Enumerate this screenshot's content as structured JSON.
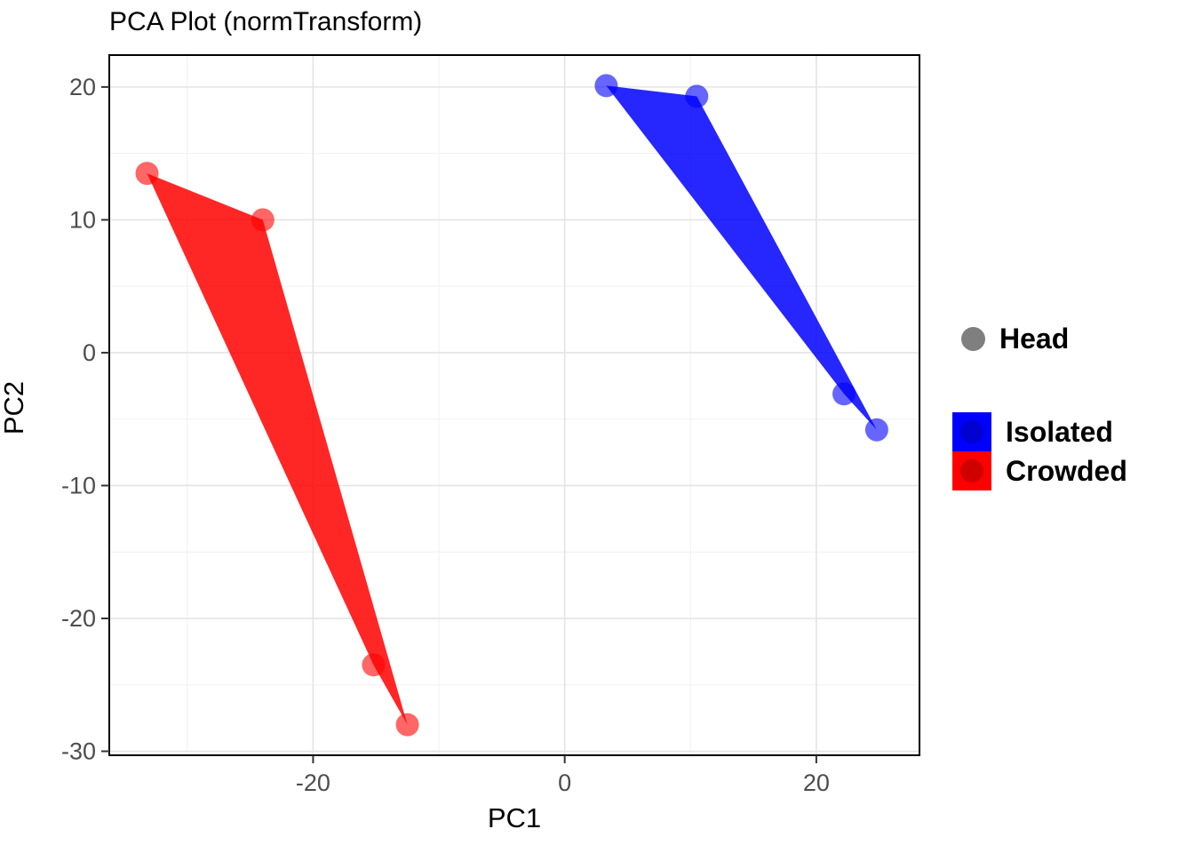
{
  "title": "PCA Plot (normTransform)",
  "axis_titles": {
    "x": "PC1",
    "y": "PC2"
  },
  "legend": {
    "shape_items": [
      {
        "label": "Head",
        "color": "#7f7f7f"
      }
    ],
    "fill_items": [
      {
        "label": "Isolated",
        "color": "#0000FF"
      },
      {
        "label": "Crowded",
        "color": "#FF0000"
      }
    ]
  },
  "chart_data": {
    "type": "scatter",
    "title": "PCA Plot (normTransform)",
    "xlabel": "PC1",
    "ylabel": "PC2",
    "xlim": [
      -36.2,
      28.2
    ],
    "ylim": [
      -30.3,
      22.4
    ],
    "x_ticks": [
      -20,
      0,
      20
    ],
    "y_ticks": [
      -30,
      -20,
      -10,
      0,
      10,
      20
    ],
    "x_minor_ticks": [
      -30,
      -10,
      10
    ],
    "y_minor_ticks": [
      -25,
      -15,
      -5,
      5,
      15
    ],
    "grid": true,
    "legend_position": "right",
    "point_shape": "circle",
    "point_radius": 13,
    "point_opacity": 0.6,
    "hull_opacity": 0.85,
    "shape_legend_label": "Head",
    "series": [
      {
        "name": "Isolated",
        "color": "#0000FF",
        "points": [
          [
            3.3,
            20.1
          ],
          [
            10.5,
            19.3
          ],
          [
            22.2,
            -3.1
          ],
          [
            24.8,
            -5.8
          ]
        ],
        "hull": [
          [
            3.3,
            20.1
          ],
          [
            10.5,
            19.3
          ],
          [
            24.8,
            -5.8
          ],
          [
            22.2,
            -3.1
          ]
        ]
      },
      {
        "name": "Crowded",
        "color": "#FF0000",
        "points": [
          [
            -33.2,
            13.5
          ],
          [
            -24.0,
            10.0
          ],
          [
            -15.2,
            -23.5
          ],
          [
            -12.5,
            -28.0
          ]
        ],
        "hull": [
          [
            -33.2,
            13.5
          ],
          [
            -24.0,
            10.0
          ],
          [
            -12.5,
            -28.0
          ],
          [
            -15.2,
            -23.5
          ]
        ]
      }
    ]
  }
}
